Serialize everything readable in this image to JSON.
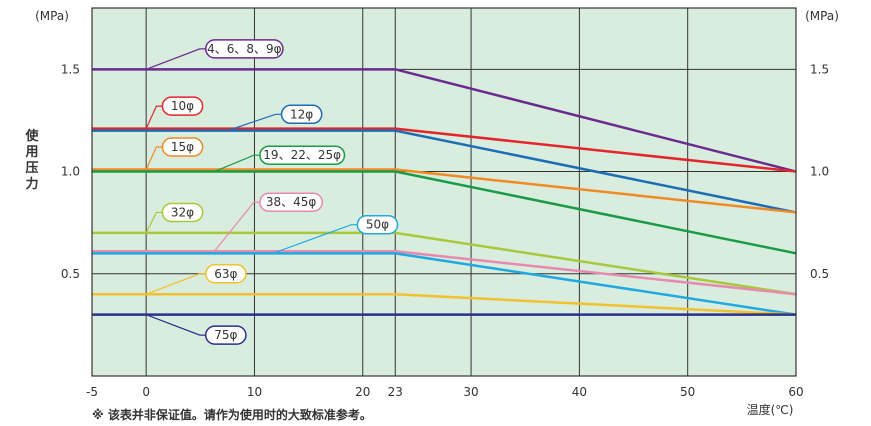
{
  "chart_data": {
    "type": "line",
    "ylabel": "使用压力",
    "yunit_left": "(MPa)",
    "yunit_right": "(MPa)",
    "xlabel": "温度(℃)",
    "xlim": [
      -5,
      60
    ],
    "ylim": [
      0,
      1.8
    ],
    "x_ticks": [
      -5,
      0,
      10,
      20,
      23,
      30,
      40,
      50,
      60
    ],
    "y_ticks": [
      0.5,
      1.0,
      1.5
    ],
    "grid": true,
    "background": "#d9eddf",
    "series": [
      {
        "name": "4、6、8、9φ",
        "color": "#6a2a8e",
        "x": [
          -5,
          23,
          60
        ],
        "y": [
          1.5,
          1.5,
          1.0
        ],
        "label_x": 5.5,
        "label_y": 1.6
      },
      {
        "name": "10φ",
        "color": "#e3262b",
        "x": [
          -5,
          23,
          60
        ],
        "y": [
          1.21,
          1.21,
          1.0
        ],
        "label_x": 1.5,
        "label_y": 1.32
      },
      {
        "name": "12φ",
        "color": "#1d6db5",
        "x": [
          -5,
          23,
          60
        ],
        "y": [
          1.2,
          1.2,
          0.8
        ],
        "label_x": 12.5,
        "label_y": 1.28
      },
      {
        "name": "15φ",
        "color": "#f08a24",
        "x": [
          -5,
          23,
          60
        ],
        "y": [
          1.01,
          1.01,
          0.8
        ],
        "label_x": 1.5,
        "label_y": 1.12
      },
      {
        "name": "19、22、25φ",
        "color": "#1a9b47",
        "x": [
          -5,
          23,
          60
        ],
        "y": [
          1.0,
          1.0,
          0.6
        ],
        "label_x": 10.5,
        "label_y": 1.08
      },
      {
        "name": "32φ",
        "color": "#a8c83a",
        "x": [
          -5,
          23,
          60
        ],
        "y": [
          0.7,
          0.7,
          0.4
        ],
        "label_x": 1.5,
        "label_y": 0.8
      },
      {
        "name": "38、45φ",
        "color": "#e889b0",
        "x": [
          -5,
          23,
          60
        ],
        "y": [
          0.61,
          0.61,
          0.4
        ],
        "label_x": 10.5,
        "label_y": 0.85
      },
      {
        "name": "50φ",
        "color": "#20a9e0",
        "x": [
          -5,
          23,
          60
        ],
        "y": [
          0.6,
          0.6,
          0.3
        ],
        "label_x": 19.5,
        "label_y": 0.74
      },
      {
        "name": "63φ",
        "color": "#f2c12e",
        "x": [
          -5,
          23,
          60
        ],
        "y": [
          0.4,
          0.4,
          0.3
        ],
        "label_x": 5.5,
        "label_y": 0.5
      },
      {
        "name": "75φ",
        "color": "#2b2f8e",
        "x": [
          -5,
          23,
          60
        ],
        "y": [
          0.3,
          0.3,
          0.3
        ],
        "label_x": 5.5,
        "label_y": 0.2
      }
    ],
    "note": "※ 该表并非保证值。请作为使用时的大致标准参考。"
  }
}
